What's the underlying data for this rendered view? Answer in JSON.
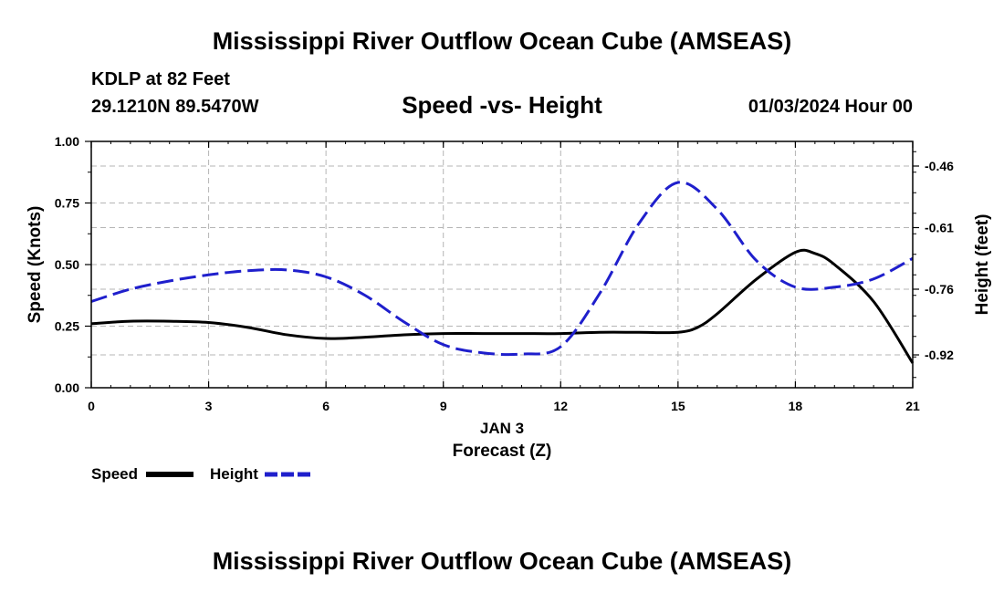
{
  "header": {
    "title": "Mississippi River Outflow Ocean Cube (AMSEAS)",
    "station": "KDLP at 82 Feet",
    "coordinates": "29.1210N  89.5470W",
    "subtitle": "Speed -vs- Height",
    "date": "01/03/2024 Hour 00"
  },
  "footer": {
    "title": "Mississippi River Outflow Ocean Cube (AMSEAS)"
  },
  "chart_data": {
    "type": "line",
    "title": "Speed -vs- Height",
    "xlabel": "Forecast (Z)",
    "x_date_label": "JAN 3",
    "ylabel": "Speed (Knots)",
    "y2label": "Height (feet)",
    "xlim": [
      0,
      21
    ],
    "ylim": [
      0,
      1.0
    ],
    "y2lim": [
      -1.0,
      -0.4
    ],
    "x_ticks": [
      0,
      3,
      6,
      9,
      12,
      15,
      18,
      21
    ],
    "y_ticks": [
      0.0,
      0.25,
      0.5,
      0.75,
      1.0
    ],
    "y_tick_labels": [
      "0.00",
      "0.25",
      "0.50",
      "0.75",
      "1.00"
    ],
    "y2_ticks": [
      -0.46,
      -0.61,
      -0.76,
      -0.92
    ],
    "y2_tick_labels": [
      "-0.46",
      "-0.61",
      "-0.76",
      "-0.92"
    ],
    "grid": true,
    "legend": "bottom-left",
    "series": [
      {
        "name": "Speed",
        "axis": "left",
        "color": "#000000",
        "dash": "solid",
        "x": [
          0,
          1,
          2,
          3,
          4,
          5,
          6,
          7,
          8,
          9,
          10,
          11,
          12,
          13,
          14,
          15,
          15.5,
          16,
          17,
          18,
          18.5,
          19,
          20,
          21
        ],
        "values": [
          0.26,
          0.27,
          0.27,
          0.265,
          0.245,
          0.215,
          0.2,
          0.205,
          0.215,
          0.22,
          0.22,
          0.22,
          0.22,
          0.225,
          0.225,
          0.225,
          0.245,
          0.3,
          0.44,
          0.55,
          0.545,
          0.5,
          0.35,
          0.1
        ]
      },
      {
        "name": "Height",
        "axis": "right",
        "color": "#1f1fcc",
        "dash": "dashed",
        "x": [
          0,
          1,
          2,
          3,
          4,
          5,
          6,
          7,
          8,
          9,
          10,
          11,
          12,
          13,
          14,
          15,
          16,
          17,
          18,
          19,
          20,
          21
        ],
        "values": [
          -0.79,
          -0.76,
          -0.74,
          -0.725,
          -0.715,
          -0.713,
          -0.73,
          -0.775,
          -0.84,
          -0.895,
          -0.915,
          -0.918,
          -0.9,
          -0.77,
          -0.6,
          -0.5,
          -0.565,
          -0.69,
          -0.755,
          -0.755,
          -0.735,
          -0.685
        ]
      }
    ]
  }
}
